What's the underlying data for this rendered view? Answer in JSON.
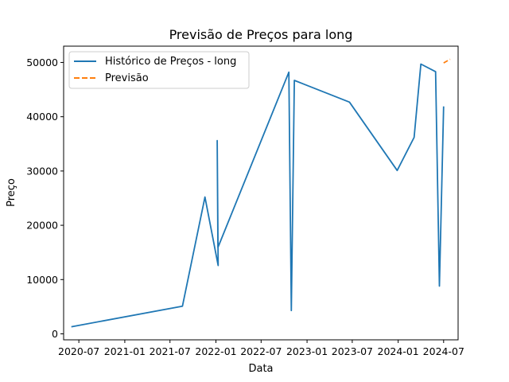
{
  "chart_data": {
    "type": "line",
    "title": "Previsão de Preços para long",
    "xlabel": "Data",
    "ylabel": "Preço",
    "xlim": [
      "2020-05-01",
      "2024-08-28"
    ],
    "ylim": [
      -1100,
      53000
    ],
    "x_ticks": [
      "2020-07-01",
      "2021-01-01",
      "2021-07-01",
      "2022-01-01",
      "2022-07-01",
      "2023-01-01",
      "2023-07-01",
      "2024-01-01",
      "2024-07-01"
    ],
    "x_tick_labels": [
      "2020-07",
      "2021-01",
      "2021-07",
      "2022-01",
      "2022-07",
      "2023-01",
      "2023-07",
      "2024-01",
      "2024-07"
    ],
    "y_ticks": [
      0,
      10000,
      20000,
      30000,
      40000,
      50000
    ],
    "y_tick_labels": [
      "0",
      "10000",
      "20000",
      "30000",
      "40000",
      "50000"
    ],
    "grid": false,
    "legend_position": "top-left",
    "series": [
      {
        "name": "Histórico de Preços - long",
        "style": "solid",
        "color": "#1f77b4",
        "points": [
          {
            "x": "2020-06-01",
            "y": 1300
          },
          {
            "x": "2021-08-20",
            "y": 5100
          },
          {
            "x": "2021-11-18",
            "y": 25200
          },
          {
            "x": "2022-01-10",
            "y": 12600
          },
          {
            "x": "2022-01-06",
            "y": 35600
          },
          {
            "x": "2022-01-09",
            "y": 15900
          },
          {
            "x": "2022-10-20",
            "y": 48200
          },
          {
            "x": "2022-10-30",
            "y": 4300
          },
          {
            "x": "2022-11-11",
            "y": 46700
          },
          {
            "x": "2023-06-20",
            "y": 42700
          },
          {
            "x": "2023-12-28",
            "y": 30100
          },
          {
            "x": "2024-03-05",
            "y": 36200
          },
          {
            "x": "2024-04-01",
            "y": 49700
          },
          {
            "x": "2024-05-30",
            "y": 48300
          },
          {
            "x": "2024-06-14",
            "y": 8800
          },
          {
            "x": "2024-07-01",
            "y": 41900
          }
        ]
      },
      {
        "name": "Previsão",
        "style": "dashed",
        "color": "#ff7f0e",
        "points": [
          {
            "x": "2024-07-01",
            "y": 49900
          },
          {
            "x": "2024-07-27",
            "y": 50600
          }
        ]
      }
    ]
  }
}
